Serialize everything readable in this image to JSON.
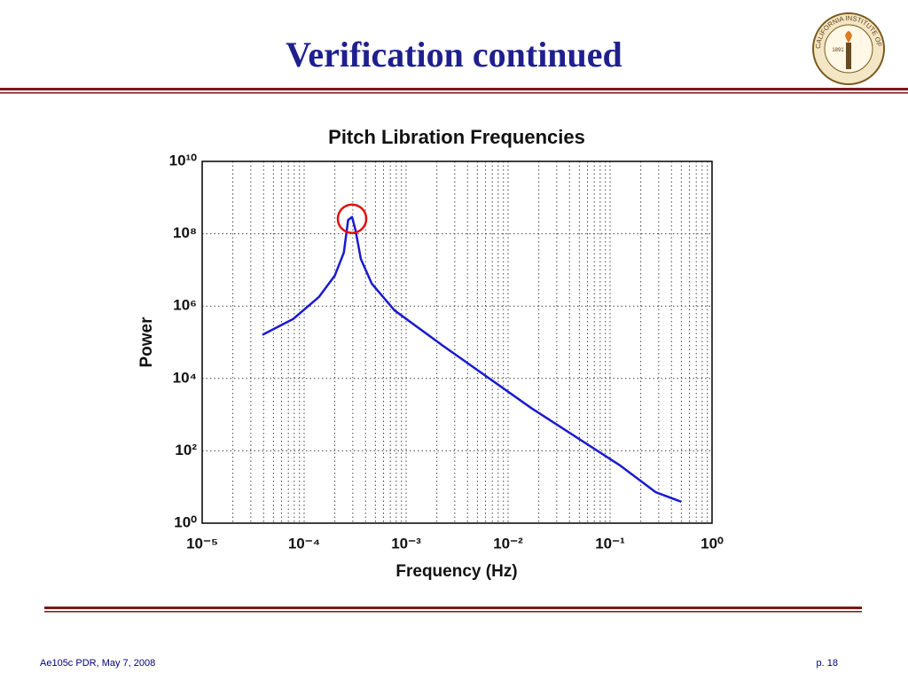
{
  "header": {
    "title": "Verification continued"
  },
  "logo": {
    "text": "CALIFORNIA INSTITUTE OF TECHNOLOGY",
    "year": "1891"
  },
  "footer": {
    "left": "Ae105c PDR, May 7, 2008",
    "right": "p. 18"
  },
  "chart_data": {
    "type": "line",
    "title": "Pitch Libration Frequencies",
    "x_label": "Frequency (Hz)",
    "y_label": "Power",
    "log_x": true,
    "log_y": true,
    "grid": true,
    "color": "#1a1ad0",
    "x": [
      3.9e-05,
      7.8e-05,
      0.00014,
      0.0002,
      0.000245,
      0.00027,
      0.000295,
      0.00032,
      0.00036,
      0.00046,
      0.00077,
      0.0023,
      0.017,
      0.126,
      0.28,
      0.5
    ],
    "values": [
      160000,
      440000,
      1800000,
      7000000,
      30000000,
      240000000,
      290000000,
      120000000,
      20000000,
      4200000,
      760000,
      80000,
      1500,
      39,
      7.2,
      3.9
    ],
    "xlim": [
      1e-05,
      1
    ],
    "ylim": [
      1,
      10000000000
    ],
    "xticks": [
      {
        "value": 1e-05,
        "label": "10⁻⁵"
      },
      {
        "value": 0.0001,
        "label": "10⁻⁴"
      },
      {
        "value": 0.001,
        "label": "10⁻³"
      },
      {
        "value": 0.01,
        "label": "10⁻²"
      },
      {
        "value": 0.1,
        "label": "10⁻¹"
      },
      {
        "value": 1,
        "label": "10⁰"
      }
    ],
    "yticks": [
      {
        "value": 1,
        "label": "10⁰"
      },
      {
        "value": 100,
        "label": "10²"
      },
      {
        "value": 10000,
        "label": "10⁴"
      },
      {
        "value": 1000000,
        "label": "10⁶"
      },
      {
        "value": 100000000,
        "label": "10⁸"
      },
      {
        "value": 10000000000,
        "label": "10¹⁰"
      }
    ]
  }
}
